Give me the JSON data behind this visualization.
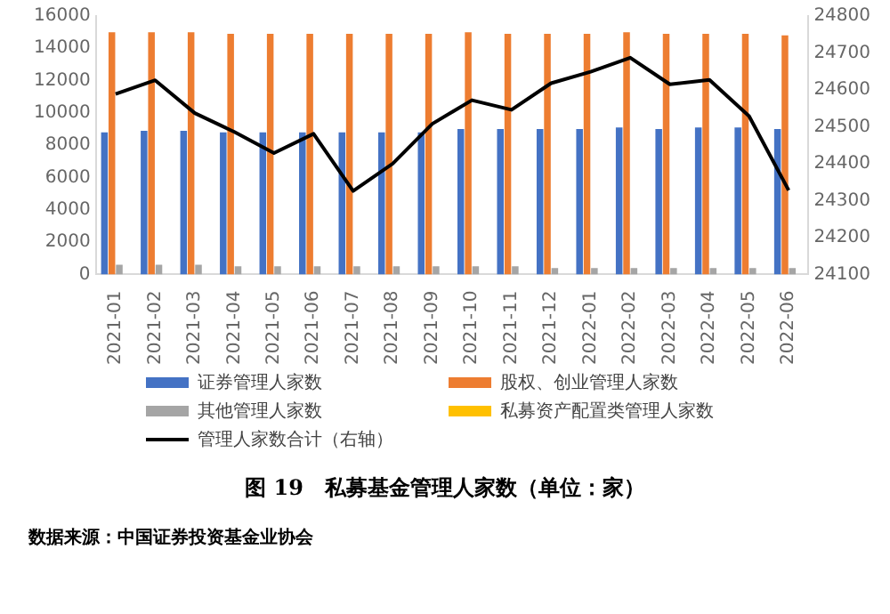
{
  "chart_data": {
    "type": "bar",
    "title": "图 19　私募基金管理人家数（单位：家）",
    "annotations": [
      "数据来源：中国证券投资基金业协会"
    ],
    "categories": [
      "2021-01",
      "2021-02",
      "2021-03",
      "2021-04",
      "2021-05",
      "2021-06",
      "2021-07",
      "2021-08",
      "2021-09",
      "2021-10",
      "2021-11",
      "2021-12",
      "2022-01",
      "2022-02",
      "2022-03",
      "2022-04",
      "2022-05",
      "2022-06"
    ],
    "series": [
      {
        "name": "证券管理人家数",
        "color": "#4472c4",
        "values": [
          8800,
          8900,
          8900,
          8800,
          8800,
          8800,
          8800,
          8800,
          8800,
          9000,
          9000,
          9000,
          9000,
          9100,
          9000,
          9100,
          9100,
          9000
        ]
      },
      {
        "name": "股权、创业管理人家数",
        "color": "#ed7d31",
        "values": [
          15000,
          15000,
          15000,
          14900,
          14900,
          14900,
          14900,
          14900,
          14900,
          15000,
          14900,
          14900,
          14900,
          15000,
          14900,
          14900,
          14900,
          14800
        ]
      },
      {
        "name": "其他管理人家数",
        "color": "#a5a5a5",
        "values": [
          600,
          600,
          600,
          500,
          500,
          500,
          500,
          500,
          500,
          500,
          500,
          400,
          400,
          400,
          400,
          400,
          400,
          400
        ]
      },
      {
        "name": "私募资产配置类管理人家数",
        "color": "#ffc000",
        "values": [
          null,
          null,
          null,
          null,
          null,
          null,
          null,
          null,
          null,
          null,
          null,
          null,
          null,
          null,
          null,
          null,
          null,
          null
        ]
      },
      {
        "name": "管理人家数合计（右轴）",
        "type": "line",
        "axis": "y2",
        "color": "#000000",
        "values": [
          24589,
          24626,
          24537,
          24486,
          24429,
          24481,
          24326,
          24400,
          24508,
          24572,
          24546,
          24618,
          24649,
          24687,
          24615,
          24627,
          24529,
          24328
        ]
      }
    ],
    "ylim": [
      0,
      16000
    ],
    "yticks": [
      0,
      2000,
      4000,
      6000,
      8000,
      10000,
      12000,
      14000,
      16000
    ],
    "y2lim": [
      24100,
      24800
    ],
    "y2ticks": [
      24100,
      24200,
      24300,
      24400,
      24500,
      24600,
      24700,
      24800
    ],
    "grid": false,
    "legend": "bottom",
    "marker": "none"
  }
}
